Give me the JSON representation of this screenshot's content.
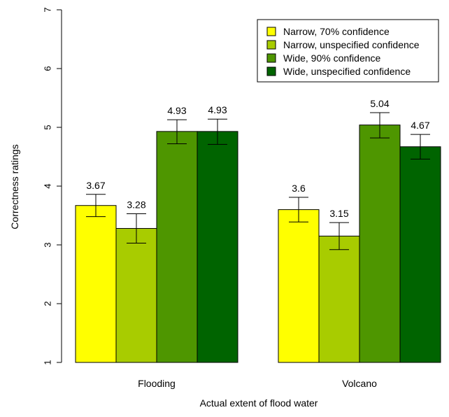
{
  "chart_data": {
    "type": "bar",
    "title": "",
    "xlabel": "Actual extent of flood water",
    "ylabel": "Correctness ratings",
    "ylim": [
      1,
      7
    ],
    "yticks": [
      1,
      2,
      3,
      4,
      5,
      6,
      7
    ],
    "categories": [
      "Flooding",
      "Volcano"
    ],
    "series": [
      {
        "name": "Narrow, 70% confidence",
        "color": "#ffff00",
        "values": [
          3.67,
          3.6
        ],
        "labels": [
          "3.67",
          "3.6"
        ],
        "err_low": [
          3.48,
          3.39
        ],
        "err_high": [
          3.86,
          3.81
        ]
      },
      {
        "name": "Narrow, unspecified confidence",
        "color": "#a8cc00",
        "values": [
          3.28,
          3.15
        ],
        "labels": [
          "3.28",
          "3.15"
        ],
        "err_low": [
          3.03,
          2.92
        ],
        "err_high": [
          3.53,
          3.38
        ]
      },
      {
        "name": "Wide, 90% confidence",
        "color": "#4e9600",
        "values": [
          4.93,
          5.04
        ],
        "labels": [
          "4.93",
          "5.04"
        ],
        "err_low": [
          4.72,
          4.82
        ],
        "err_high": [
          5.13,
          5.25
        ]
      },
      {
        "name": "Wide, unspecified confidence",
        "color": "#006400",
        "values": [
          4.93,
          4.67
        ],
        "labels": [
          "4.93",
          "4.67"
        ],
        "err_low": [
          4.71,
          4.46
        ],
        "err_high": [
          5.14,
          4.88
        ]
      }
    ],
    "legend_position": "top-right",
    "grid": false
  }
}
